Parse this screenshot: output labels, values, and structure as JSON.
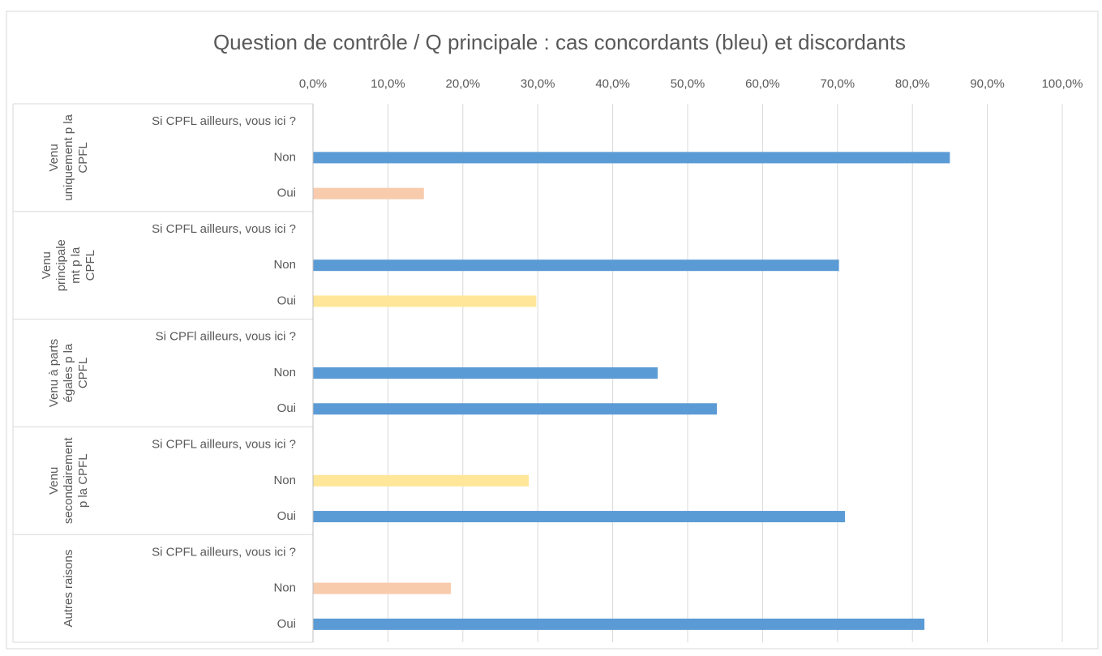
{
  "chart_data": {
    "type": "bar",
    "orientation": "horizontal",
    "title": "Question de contrôle / Q principale : cas concordants (bleu) et discordants",
    "xlim": [
      0,
      100
    ],
    "xticks": [
      {
        "value": 0,
        "label": "0,0%"
      },
      {
        "value": 10,
        "label": "10,0%"
      },
      {
        "value": 20,
        "label": "20,0%"
      },
      {
        "value": 30,
        "label": "30,0%"
      },
      {
        "value": 40,
        "label": "40,0%"
      },
      {
        "value": 50,
        "label": "50,0%"
      },
      {
        "value": 60,
        "label": "60,0%"
      },
      {
        "value": 70,
        "label": "70,0%"
      },
      {
        "value": 80,
        "label": "80,0%"
      },
      {
        "value": 90,
        "label": "90,0%"
      },
      {
        "value": 100,
        "label": "100,0%"
      }
    ],
    "grid": true,
    "groups": [
      {
        "label_lines": [
          "Venu",
          "uniquement p la",
          "CPFL"
        ],
        "categories": [
          "Si CPFL ailleurs, vous ici ?",
          "Non",
          "Oui"
        ],
        "values": [
          null,
          85.0,
          14.8
        ],
        "colors": [
          null,
          "#5b9bd5",
          "#f8cbad"
        ]
      },
      {
        "label_lines": [
          "Venu",
          "principale",
          "mt p la",
          "CPFL"
        ],
        "categories": [
          "Si CPFL ailleurs, vous ici ?",
          "Non",
          "Oui"
        ],
        "values": [
          null,
          70.2,
          29.8
        ],
        "colors": [
          null,
          "#5b9bd5",
          "#ffe699"
        ]
      },
      {
        "label_lines": [
          "Venu à parts",
          "égales p la",
          "CPFL"
        ],
        "categories": [
          "Si CPFl ailleurs, vous ici ?",
          "Non",
          "Oui"
        ],
        "values": [
          null,
          46.0,
          53.9
        ],
        "colors": [
          null,
          "#5b9bd5",
          "#5b9bd5"
        ]
      },
      {
        "label_lines": [
          "Venu",
          "secondairement",
          "p la CPFL"
        ],
        "categories": [
          "Si CPFL ailleurs, vous ici ?",
          "Non",
          "Oui"
        ],
        "values": [
          null,
          28.8,
          71.0
        ],
        "colors": [
          null,
          "#ffe699",
          "#5b9bd5"
        ]
      },
      {
        "label_lines": [
          "Autres raisons"
        ],
        "categories": [
          "Si CPFL ailleurs, vous ici ?",
          "Non",
          "Oui"
        ],
        "values": [
          null,
          18.4,
          81.6
        ],
        "colors": [
          null,
          "#f8cbad",
          "#5b9bd5"
        ]
      }
    ]
  }
}
